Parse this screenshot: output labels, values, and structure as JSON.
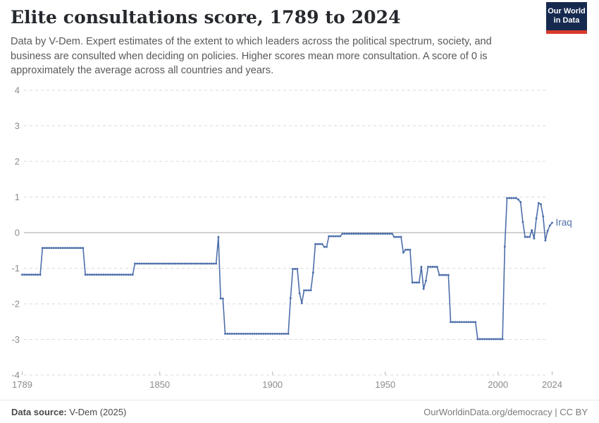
{
  "header": {
    "title": "Elite consultations score, 1789 to 2024",
    "subtitle": "Data by V-Dem. Expert estimates of the extent to which leaders across the political spectrum, society, and business are consulted when deciding on policies. Higher scores mean more consultation. A score of 0 is approximately the average across all countries and years.",
    "logo": {
      "line1": "Our World",
      "line2": "in Data",
      "bg_color": "#16294f",
      "bar_color": "#d93a2b"
    }
  },
  "chart_data": {
    "type": "line",
    "title": "Elite consultations score, 1789 to 2024",
    "entity": "Iraq",
    "series_color": "#4d6faa",
    "x_range": [
      1789,
      2024
    ],
    "x_ticks": [
      1789,
      1850,
      1900,
      1950,
      2000,
      2024
    ],
    "ylim": [
      -4,
      4
    ],
    "y_ticks": [
      4,
      3,
      2,
      1,
      0,
      -1,
      -2,
      -3,
      -4
    ],
    "grid": "dashed horizontal, solid zero line",
    "legend_position": "end-of-line label",
    "series": [
      {
        "name": "Iraq",
        "step_segments": [
          {
            "from": 1789,
            "to": 1797,
            "value": -1.18
          },
          {
            "from": 1798,
            "to": 1816,
            "value": -0.43
          },
          {
            "from": 1817,
            "to": 1838,
            "value": -1.18
          },
          {
            "from": 1839,
            "to": 1875,
            "value": -0.87
          },
          {
            "from": 1876,
            "to": 1876,
            "value": -0.12
          },
          {
            "from": 1877,
            "to": 1878,
            "value": -1.85
          },
          {
            "from": 1879,
            "to": 1907,
            "value": -2.84
          },
          {
            "from": 1908,
            "to": 1908,
            "value": -1.84
          },
          {
            "from": 1909,
            "to": 1911,
            "value": -1.02
          },
          {
            "from": 1912,
            "to": 1912,
            "value": -1.7
          },
          {
            "from": 1913,
            "to": 1913,
            "value": -1.98
          },
          {
            "from": 1914,
            "to": 1917,
            "value": -1.62
          },
          {
            "from": 1918,
            "to": 1918,
            "value": -1.12
          },
          {
            "from": 1919,
            "to": 1922,
            "value": -0.32
          },
          {
            "from": 1923,
            "to": 1924,
            "value": -0.4
          },
          {
            "from": 1925,
            "to": 1930,
            "value": -0.1
          },
          {
            "from": 1931,
            "to": 1953,
            "value": -0.03
          },
          {
            "from": 1954,
            "to": 1957,
            "value": -0.12
          },
          {
            "from": 1958,
            "to": 1958,
            "value": -0.56
          },
          {
            "from": 1959,
            "to": 1961,
            "value": -0.48
          },
          {
            "from": 1962,
            "to": 1965,
            "value": -1.4
          },
          {
            "from": 1966,
            "to": 1966,
            "value": -0.96
          },
          {
            "from": 1967,
            "to": 1967,
            "value": -1.58
          },
          {
            "from": 1968,
            "to": 1968,
            "value": -1.35
          },
          {
            "from": 1969,
            "to": 1973,
            "value": -0.96
          },
          {
            "from": 1974,
            "to": 1978,
            "value": -1.19
          },
          {
            "from": 1979,
            "to": 1990,
            "value": -2.51
          },
          {
            "from": 1991,
            "to": 2002,
            "value": -2.99
          },
          {
            "from": 2003,
            "to": 2003,
            "value": -0.39
          },
          {
            "from": 2004,
            "to": 2008,
            "value": 0.97
          },
          {
            "from": 2009,
            "to": 2009,
            "value": 0.93
          },
          {
            "from": 2010,
            "to": 2010,
            "value": 0.86
          },
          {
            "from": 2011,
            "to": 2011,
            "value": 0.3
          },
          {
            "from": 2012,
            "to": 2014,
            "value": -0.12
          },
          {
            "from": 2015,
            "to": 2015,
            "value": 0.07
          },
          {
            "from": 2016,
            "to": 2016,
            "value": -0.16
          },
          {
            "from": 2017,
            "to": 2017,
            "value": 0.4
          },
          {
            "from": 2018,
            "to": 2018,
            "value": 0.83
          },
          {
            "from": 2019,
            "to": 2019,
            "value": 0.8
          },
          {
            "from": 2020,
            "to": 2020,
            "value": 0.46
          },
          {
            "from": 2021,
            "to": 2021,
            "value": -0.22
          },
          {
            "from": 2022,
            "to": 2022,
            "value": 0.05
          },
          {
            "from": 2023,
            "to": 2023,
            "value": 0.2
          },
          {
            "from": 2024,
            "to": 2024,
            "value": 0.28
          }
        ]
      }
    ]
  },
  "footer": {
    "source_label": "Data source:",
    "source_value": " V-Dem (2025)",
    "right_text": "OurWorldinData.org/democracy | CC BY"
  }
}
